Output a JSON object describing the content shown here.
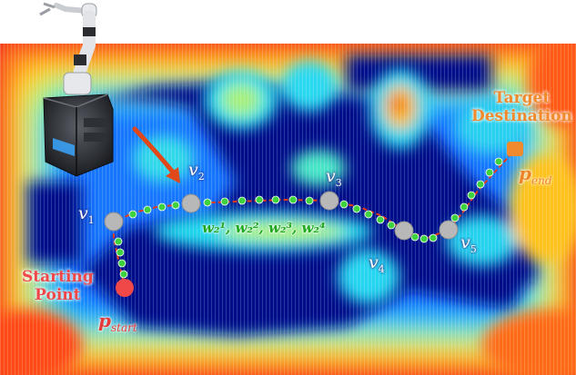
{
  "colors": {
    "start": "#f04848",
    "target": "#f08a2c",
    "waypoint": "#3fd23f",
    "node": "#b8b8b8",
    "path": "#e23b1a",
    "w_label": "#1fa81f"
  },
  "labels": {
    "starting_point": [
      "Starting",
      "Point"
    ],
    "target_destination": [
      "Target",
      "Destination"
    ],
    "p_start": {
      "base": "p",
      "sub": "start"
    },
    "p_end": {
      "base": "p",
      "sub": "end"
    },
    "waypoints_group": "w₂¹, w₂², w₂³, w₂⁴"
  },
  "nodes": [
    {
      "base": "v",
      "sub": "1"
    },
    {
      "base": "v",
      "sub": "2"
    },
    {
      "base": "v",
      "sub": "3"
    },
    {
      "base": "v",
      "sub": "4"
    },
    {
      "base": "v",
      "sub": "5"
    }
  ],
  "icons": [
    "robot-arm-icon",
    "arrow-icon"
  ]
}
